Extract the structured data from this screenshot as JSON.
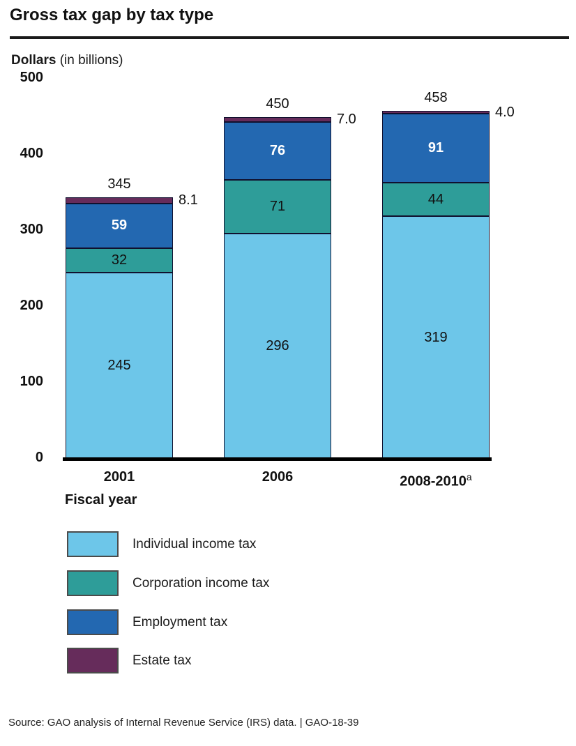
{
  "title": "Gross tax gap by tax type",
  "y_axis": {
    "bold": "Dollars",
    "rest": " (in billions)"
  },
  "source": "Source: GAO analysis of Internal Revenue Service (IRS) data.  |  GAO-18-39",
  "chart_data": {
    "type": "bar",
    "stacked": true,
    "title": "Gross tax gap by tax type",
    "xlabel": "Fiscal year",
    "ylabel": "Dollars (in billions)",
    "categories": [
      "2001",
      "2006",
      "2008-2010"
    ],
    "category_superscripts": [
      "",
      "",
      "a"
    ],
    "series": [
      {
        "name": "Individual income tax",
        "color": "#6DC6E9",
        "values": [
          245,
          296,
          319
        ],
        "label_placement": "inside",
        "label_color": "black"
      },
      {
        "name": "Corporation income tax",
        "color": "#2E9D99",
        "values": [
          32,
          71,
          44
        ],
        "label_placement": "inside",
        "label_color": "black"
      },
      {
        "name": "Employment tax",
        "color": "#2368B1",
        "values": [
          59,
          76,
          91
        ],
        "label_placement": "inside",
        "label_color": "white"
      },
      {
        "name": "Estate tax",
        "color": "#662C5B",
        "values": [
          8.1,
          7.0,
          4.0
        ],
        "label_placement": "outside-right",
        "label_color": "black",
        "value_labels": [
          "8.1",
          "7.0",
          "4.0"
        ]
      }
    ],
    "totals": [
      345,
      450,
      458
    ],
    "yticks": [
      0,
      100,
      200,
      300,
      400,
      500
    ],
    "ylim": [
      0,
      500
    ],
    "grid": false,
    "legend_position": "bottom-left"
  }
}
